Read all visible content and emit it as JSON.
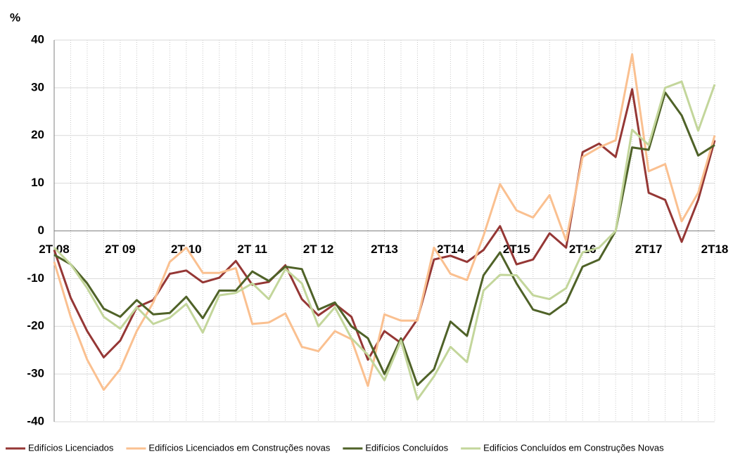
{
  "chart_data": {
    "type": "line",
    "ylabel": "%",
    "categories": [
      "2T 08",
      null,
      null,
      null,
      "2T 09",
      null,
      null,
      null,
      "2T 10",
      null,
      null,
      null,
      "2T 11",
      null,
      null,
      null,
      "2T 12",
      null,
      null,
      null,
      "2T13",
      null,
      null,
      null,
      "2T14",
      null,
      null,
      null,
      "2T15",
      null,
      null,
      null,
      "2T16",
      null,
      null,
      null,
      "2T17",
      null,
      null,
      null,
      "2T18"
    ],
    "series": [
      {
        "name": "Edifícios Licenciados",
        "color": "#953735",
        "values": [
          -4,
          -14,
          -21,
          -26.5,
          -23,
          -16,
          -14.5,
          -9,
          -8.3,
          -10.8,
          -9.8,
          -6.3,
          -11.3,
          -10.7,
          -7.2,
          -14.3,
          -17.7,
          -15.3,
          -18,
          -27,
          -21,
          -23.5,
          -18.5,
          -6,
          -5.2,
          -6.5,
          -4,
          1,
          -7,
          -6,
          -0.5,
          -3.5,
          16.5,
          18.3,
          15.5,
          29.7,
          8,
          6.5,
          -2.3,
          6.5,
          19
        ]
      },
      {
        "name": "Edifícios Licenciados em Construções novas",
        "color": "#fac090",
        "values": [
          -6.5,
          -18,
          -27,
          -33.3,
          -29,
          -21,
          -15,
          -6.5,
          -3.5,
          -8.8,
          -8.8,
          -7.8,
          -19.5,
          -19.2,
          -17.3,
          -24.3,
          -25.2,
          -21,
          -22.7,
          -32.5,
          -17.5,
          -18.8,
          -18.8,
          -3.5,
          -9,
          -10.3,
          -1,
          9.8,
          4.3,
          2.8,
          7.5,
          -2,
          15.5,
          17.5,
          19,
          37,
          12.5,
          14,
          2,
          8,
          20
        ]
      },
      {
        "name": "Edifícios Concluídos",
        "color": "#4f6228",
        "values": [
          -5,
          -7,
          -11,
          -16.3,
          -18,
          -14.5,
          -17.5,
          -17.2,
          -13.8,
          -18.3,
          -12.5,
          -12.5,
          -8.5,
          -10.5,
          -7.5,
          -8,
          -16.5,
          -15,
          -20,
          -22.5,
          -30,
          -22.5,
          -32.3,
          -29,
          -19,
          -22,
          -9.3,
          -4.5,
          -11,
          -16.5,
          -17.5,
          -15,
          -7.5,
          -6,
          0,
          17.5,
          17,
          29,
          24.2,
          15.8,
          18
        ]
      },
      {
        "name": "Edifícios Concluídos em Construções Novas",
        "color": "#c3d69b",
        "values": [
          -3.5,
          -7,
          -12,
          -18,
          -20.5,
          -16,
          -19.5,
          -18.2,
          -15.3,
          -21.3,
          -13.5,
          -13,
          -11,
          -14.3,
          -8,
          -11,
          -20,
          -16,
          -22.5,
          -26,
          -31.3,
          -23,
          -35.3,
          -30.5,
          -24.3,
          -27.5,
          -12.5,
          -9.2,
          -9.3,
          -13.5,
          -14.3,
          -12,
          -4.5,
          -3.5,
          0,
          21.2,
          18,
          30,
          31.3,
          21,
          30.7
        ]
      }
    ],
    "ylim": [
      -40,
      40
    ],
    "yticks": [
      -40,
      -30,
      -20,
      -10,
      0,
      10,
      20,
      30,
      40
    ],
    "grid": true
  }
}
